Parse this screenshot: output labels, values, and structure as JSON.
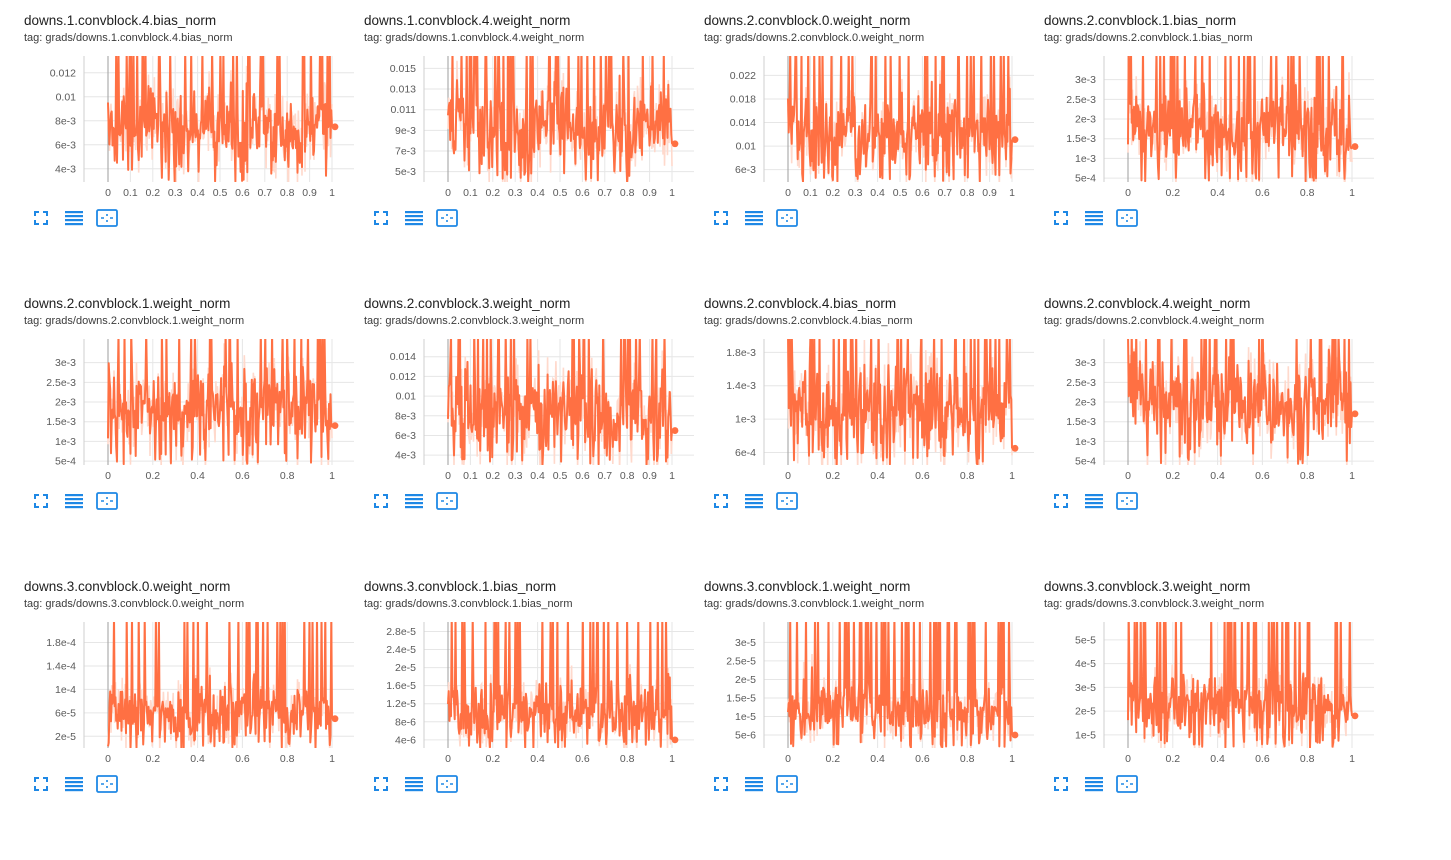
{
  "theme": {
    "line_color": "#ff7043",
    "band_color": "#ffd9cc",
    "grid_color": "#e6e6e6",
    "icon_color": "#1e88e5"
  },
  "toolbar": {
    "icons": [
      "fullscreen-icon",
      "toggle-log-scale-icon",
      "fit-domain-icon"
    ]
  },
  "charts": [
    {
      "title": "downs.1.convblock.4.bias_norm",
      "tag": "tag: grads/downs.1.convblock.4.bias_norm",
      "chart_data": {
        "type": "line",
        "x_ticks": [
          "0",
          "0.1",
          "0.2",
          "0.3",
          "0.4",
          "0.5",
          "0.6",
          "0.7",
          "0.8",
          "0.9",
          "1"
        ],
        "xlim": [
          0,
          1
        ],
        "y_ticks": [
          {
            "v": 0.004,
            "label": "4e-3"
          },
          {
            "v": 0.006,
            "label": "6e-3"
          },
          {
            "v": 0.008,
            "label": "8e-3"
          },
          {
            "v": 0.01,
            "label": "0.01"
          },
          {
            "v": 0.012,
            "label": "0.012"
          }
        ],
        "ylim": [
          0.0029,
          0.0134
        ],
        "series": [
          {
            "values_summary": {
              "mean": 0.0073,
              "amplitude": 0.0032
            },
            "last_value": 0.0075
          }
        ]
      }
    },
    {
      "title": "downs.1.convblock.4.weight_norm",
      "tag": "tag: grads/downs.1.convblock.4.weight_norm",
      "chart_data": {
        "type": "line",
        "x_ticks": [
          "0",
          "0.1",
          "0.2",
          "0.3",
          "0.4",
          "0.5",
          "0.6",
          "0.7",
          "0.8",
          "0.9",
          "1"
        ],
        "xlim": [
          0,
          1
        ],
        "y_ticks": [
          {
            "v": 0.005,
            "label": "5e-3"
          },
          {
            "v": 0.007,
            "label": "7e-3"
          },
          {
            "v": 0.009,
            "label": "9e-3"
          },
          {
            "v": 0.011,
            "label": "0.011"
          },
          {
            "v": 0.013,
            "label": "0.013"
          },
          {
            "v": 0.015,
            "label": "0.015"
          }
        ],
        "ylim": [
          0.004,
          0.0162
        ],
        "series": [
          {
            "values_summary": {
              "mean": 0.0092,
              "amplitude": 0.004
            },
            "last_value": 0.0077
          }
        ]
      }
    },
    {
      "title": "downs.2.convblock.0.weight_norm",
      "tag": "tag: grads/downs.2.convblock.0.weight_norm",
      "chart_data": {
        "type": "line",
        "x_ticks": [
          "0",
          "0.1",
          "0.2",
          "0.3",
          "0.4",
          "0.5",
          "0.6",
          "0.7",
          "0.8",
          "0.9",
          "1"
        ],
        "xlim": [
          0,
          1
        ],
        "y_ticks": [
          {
            "v": 0.006,
            "label": "6e-3"
          },
          {
            "v": 0.01,
            "label": "0.01"
          },
          {
            "v": 0.014,
            "label": "0.014"
          },
          {
            "v": 0.018,
            "label": "0.018"
          },
          {
            "v": 0.022,
            "label": "0.022"
          }
        ],
        "ylim": [
          0.0039,
          0.0253
        ],
        "series": [
          {
            "values_summary": {
              "mean": 0.012,
              "amplitude": 0.0065
            },
            "last_value": 0.0111
          }
        ]
      }
    },
    {
      "title": "downs.2.convblock.1.bias_norm",
      "tag": "tag: grads/downs.2.convblock.1.bias_norm",
      "chart_data": {
        "type": "line",
        "x_ticks": [
          "0",
          "0.2",
          "0.4",
          "0.6",
          "0.8",
          "1"
        ],
        "xlim": [
          0,
          1
        ],
        "y_ticks": [
          {
            "v": 0.0005,
            "label": "5e-4"
          },
          {
            "v": 0.001,
            "label": "1e-3"
          },
          {
            "v": 0.0015,
            "label": "1.5e-3"
          },
          {
            "v": 0.002,
            "label": "2e-3"
          },
          {
            "v": 0.0025,
            "label": "2.5e-3"
          },
          {
            "v": 0.003,
            "label": "3e-3"
          }
        ],
        "ylim": [
          0.0004,
          0.0036
        ],
        "series": [
          {
            "values_summary": {
              "mean": 0.0018,
              "amplitude": 0.001
            },
            "last_value": 0.0013
          }
        ]
      }
    },
    {
      "title": "downs.2.convblock.1.weight_norm",
      "tag": "tag: grads/downs.2.convblock.1.weight_norm",
      "chart_data": {
        "type": "line",
        "x_ticks": [
          "0",
          "0.2",
          "0.4",
          "0.6",
          "0.8",
          "1"
        ],
        "xlim": [
          0,
          1
        ],
        "y_ticks": [
          {
            "v": 0.0005,
            "label": "5e-4"
          },
          {
            "v": 0.001,
            "label": "1e-3"
          },
          {
            "v": 0.0015,
            "label": "1.5e-3"
          },
          {
            "v": 0.002,
            "label": "2e-3"
          },
          {
            "v": 0.0025,
            "label": "2.5e-3"
          },
          {
            "v": 0.003,
            "label": "3e-3"
          }
        ],
        "ylim": [
          0.0004,
          0.0036
        ],
        "series": [
          {
            "values_summary": {
              "mean": 0.0019,
              "amplitude": 0.001
            },
            "last_value": 0.0014
          }
        ]
      }
    },
    {
      "title": "downs.2.convblock.3.weight_norm",
      "tag": "tag: grads/downs.2.convblock.3.weight_norm",
      "chart_data": {
        "type": "line",
        "x_ticks": [
          "0",
          "0.1",
          "0.2",
          "0.3",
          "0.4",
          "0.5",
          "0.6",
          "0.7",
          "0.8",
          "0.9",
          "1"
        ],
        "xlim": [
          0,
          1
        ],
        "y_ticks": [
          {
            "v": 0.004,
            "label": "4e-3"
          },
          {
            "v": 0.006,
            "label": "6e-3"
          },
          {
            "v": 0.008,
            "label": "8e-3"
          },
          {
            "v": 0.01,
            "label": "0.01"
          },
          {
            "v": 0.012,
            "label": "0.012"
          },
          {
            "v": 0.014,
            "label": "0.014"
          }
        ],
        "ylim": [
          0.003,
          0.0158
        ],
        "series": [
          {
            "values_summary": {
              "mean": 0.0085,
              "amplitude": 0.004
            },
            "last_value": 0.0065
          }
        ]
      }
    },
    {
      "title": "downs.2.convblock.4.bias_norm",
      "tag": "tag: grads/downs.2.convblock.4.bias_norm",
      "chart_data": {
        "type": "line",
        "x_ticks": [
          "0",
          "0.2",
          "0.4",
          "0.6",
          "0.8",
          "1"
        ],
        "xlim": [
          0,
          1
        ],
        "y_ticks": [
          {
            "v": 0.0006,
            "label": "6e-4"
          },
          {
            "v": 0.001,
            "label": "1e-3"
          },
          {
            "v": 0.0014,
            "label": "1.4e-3"
          },
          {
            "v": 0.0018,
            "label": "1.8e-3"
          }
        ],
        "ylim": [
          0.00045,
          0.00196
        ],
        "series": [
          {
            "values_summary": {
              "mean": 0.0011,
              "amplitude": 0.0005
            },
            "last_value": 0.00065
          }
        ]
      }
    },
    {
      "title": "downs.2.convblock.4.weight_norm",
      "tag": "tag: grads/downs.2.convblock.4.weight_norm",
      "chart_data": {
        "type": "line",
        "x_ticks": [
          "0",
          "0.2",
          "0.4",
          "0.6",
          "0.8",
          "1"
        ],
        "xlim": [
          0,
          1
        ],
        "y_ticks": [
          {
            "v": 0.0005,
            "label": "5e-4"
          },
          {
            "v": 0.001,
            "label": "1e-3"
          },
          {
            "v": 0.0015,
            "label": "1.5e-3"
          },
          {
            "v": 0.002,
            "label": "2e-3"
          },
          {
            "v": 0.0025,
            "label": "2.5e-3"
          },
          {
            "v": 0.003,
            "label": "3e-3"
          }
        ],
        "ylim": [
          0.0004,
          0.0036
        ],
        "series": [
          {
            "values_summary": {
              "mean": 0.002,
              "amplitude": 0.001
            },
            "last_value": 0.0017
          }
        ]
      }
    },
    {
      "title": "downs.3.convblock.0.weight_norm",
      "tag": "tag: grads/downs.3.convblock.0.weight_norm",
      "chart_data": {
        "type": "line",
        "x_ticks": [
          "0",
          "0.2",
          "0.4",
          "0.6",
          "0.8",
          "1"
        ],
        "xlim": [
          0,
          1
        ],
        "y_ticks": [
          {
            "v": 2e-05,
            "label": "2e-5"
          },
          {
            "v": 6e-05,
            "label": "6e-5"
          },
          {
            "v": 0.0001,
            "label": "1e-4"
          },
          {
            "v": 0.00014,
            "label": "1.4e-4"
          },
          {
            "v": 0.00018,
            "label": "1.8e-4"
          }
        ],
        "ylim": [
          0.0,
          0.000215
        ],
        "series": [
          {
            "values_summary": {
              "mean": 6e-05,
              "amplitude": 5e-05
            },
            "last_value": 5e-05
          }
        ]
      }
    },
    {
      "title": "downs.3.convblock.1.bias_norm",
      "tag": "tag: grads/downs.3.convblock.1.bias_norm",
      "chart_data": {
        "type": "line",
        "x_ticks": [
          "0",
          "0.2",
          "0.4",
          "0.6",
          "0.8",
          "1"
        ],
        "xlim": [
          0,
          1
        ],
        "y_ticks": [
          {
            "v": 4e-06,
            "label": "4e-6"
          },
          {
            "v": 8e-06,
            "label": "8e-6"
          },
          {
            "v": 1.2e-05,
            "label": "1.2e-5"
          },
          {
            "v": 1.6e-05,
            "label": "1.6e-5"
          },
          {
            "v": 2e-05,
            "label": "2e-5"
          },
          {
            "v": 2.4e-05,
            "label": "2.4e-5"
          },
          {
            "v": 2.8e-05,
            "label": "2.8e-5"
          }
        ],
        "ylim": [
          2.2e-06,
          3.01e-05
        ],
        "series": [
          {
            "values_summary": {
              "mean": 1e-05,
              "amplitude": 7e-06
            },
            "last_value": 4e-06
          }
        ]
      }
    },
    {
      "title": "downs.3.convblock.1.weight_norm",
      "tag": "tag: grads/downs.3.convblock.1.weight_norm",
      "chart_data": {
        "type": "line",
        "x_ticks": [
          "0",
          "0.2",
          "0.4",
          "0.6",
          "0.8",
          "1"
        ],
        "xlim": [
          0,
          1
        ],
        "y_ticks": [
          {
            "v": 5e-06,
            "label": "5e-6"
          },
          {
            "v": 1e-05,
            "label": "1e-5"
          },
          {
            "v": 1.5e-05,
            "label": "1.5e-5"
          },
          {
            "v": 2e-05,
            "label": "2e-5"
          },
          {
            "v": 2.5e-05,
            "label": "2.5e-5"
          },
          {
            "v": 3e-05,
            "label": "3e-5"
          }
        ],
        "ylim": [
          1.5e-06,
          3.55e-05
        ],
        "series": [
          {
            "values_summary": {
              "mean": 1.2e-05,
              "amplitude": 8e-06
            },
            "last_value": 5e-06
          }
        ]
      }
    },
    {
      "title": "downs.3.convblock.3.weight_norm",
      "tag": "tag: grads/downs.3.convblock.3.weight_norm",
      "chart_data": {
        "type": "line",
        "x_ticks": [
          "0",
          "0.2",
          "0.4",
          "0.6",
          "0.8",
          "1"
        ],
        "xlim": [
          0,
          1
        ],
        "y_ticks": [
          {
            "v": 1e-05,
            "label": "1e-5"
          },
          {
            "v": 2e-05,
            "label": "2e-5"
          },
          {
            "v": 3e-05,
            "label": "3e-5"
          },
          {
            "v": 4e-05,
            "label": "4e-5"
          },
          {
            "v": 5e-05,
            "label": "5e-5"
          }
        ],
        "ylim": [
          4.5e-06,
          5.75e-05
        ],
        "series": [
          {
            "values_summary": {
              "mean": 2.2e-05,
              "amplitude": 1.2e-05
            },
            "last_value": 1.8e-05
          }
        ]
      }
    }
  ]
}
